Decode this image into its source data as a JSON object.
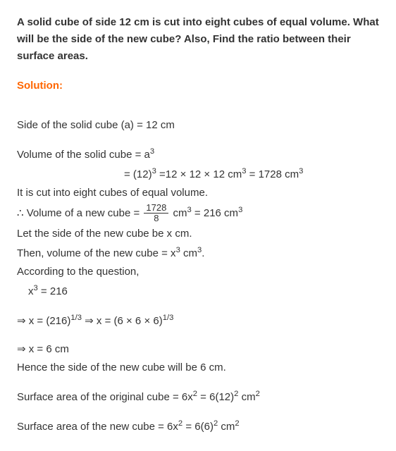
{
  "question": "A solid cube of side 12 cm is cut into eight cubes of equal volume. What will be the side of the new cube? Also, Find the ratio between their surface areas.",
  "solution_label": "Solution:",
  "l1": "Side of the solid cube (a) = 12 cm",
  "l2a": "Volume of the solid cube = a",
  "l2b_exp": "3",
  "l3a": "= (12)",
  "l3b": " =12 × 12 × 12 cm",
  "l3c": " = 1728 cm",
  "l4": "It is cut into eight cubes of equal volume.",
  "l5a": "∴ Volume of a new cube = ",
  "frac_num": "1728",
  "frac_den": "8",
  "l5b": " cm",
  "l5c": " = 216 cm",
  "l6": "Let the side of the new cube be x cm.",
  "l7a": "Then, volume of the new cube = x",
  "l7b": " cm",
  "l7c": ".",
  "l8": "According to the question,",
  "l9a": "x",
  "l9b": " = 216",
  "l10a": "⇒ x = (216)",
  "exp13": "1/3",
  "l10b": " ⇒ x = (6 × 6 × 6)",
  "l11": "⇒ x = 6 cm",
  "l12": "Hence the side of the new cube will be 6 cm.",
  "l13a": "Surface area of the original cube = 6x",
  "exp2": "2",
  "l13b": " = 6(12)",
  "l13c": " cm",
  "l14a": "Surface area of the new cube = 6x",
  "l14b": " = 6(6)",
  "l14c": " cm",
  "exp3": "3"
}
